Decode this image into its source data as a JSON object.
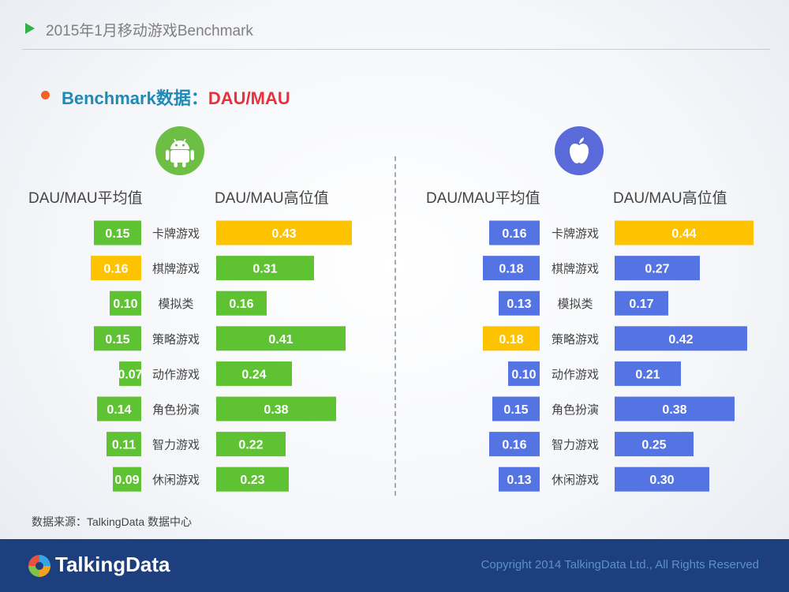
{
  "header": {
    "title": "2015年1月移动游戏Benchmark"
  },
  "section": {
    "title_a": "Benchmark数据：",
    "title_b": "DAU/MAU"
  },
  "android": {
    "logo": "android-icon",
    "avg_label": "DAU/MAU平均值",
    "high_label": "DAU/MAU高位值"
  },
  "ios": {
    "logo": "apple-icon",
    "avg_label": "DAU/MAU平均值",
    "high_label": "DAU/MAU高位值"
  },
  "source": "数据来源：TalkingData 数据中心",
  "footer": {
    "brand": "TalkingData",
    "copyright": "Copyright 2014 TalkingData Ltd., All Rights Reserved"
  },
  "colors": {
    "green": "#5ec232",
    "blue": "#5574e3",
    "highlight": "#fdc301"
  },
  "chart_data": [
    {
      "type": "bar",
      "platform": "android",
      "categories": [
        "卡牌游戏",
        "棋牌游戏",
        "模拟类",
        "策略游戏",
        "动作游戏",
        "角色扮演",
        "智力游戏",
        "休闲游戏"
      ],
      "series": [
        {
          "name": "DAU/MAU平均值",
          "values": [
            0.15,
            0.16,
            0.1,
            0.15,
            0.07,
            0.14,
            0.11,
            0.09
          ],
          "labels": [
            "0.15",
            "0.16",
            "0.10",
            "0.15",
            "0.07",
            "0.14",
            "0.11",
            "0.09"
          ],
          "highlight_index": 1
        },
        {
          "name": "DAU/MAU高位值",
          "values": [
            0.43,
            0.31,
            0.16,
            0.41,
            0.24,
            0.38,
            0.22,
            0.23
          ],
          "labels": [
            "0.43",
            "0.31",
            "0.16",
            "0.41",
            "0.24",
            "0.38",
            "0.22",
            "0.23"
          ],
          "highlight_index": 0
        }
      ]
    },
    {
      "type": "bar",
      "platform": "ios",
      "categories": [
        "卡牌游戏",
        "棋牌游戏",
        "模拟类",
        "策略游戏",
        "动作游戏",
        "角色扮演",
        "智力游戏",
        "休闲游戏"
      ],
      "series": [
        {
          "name": "DAU/MAU平均值",
          "values": [
            0.16,
            0.18,
            0.13,
            0.18,
            0.1,
            0.15,
            0.16,
            0.13
          ],
          "labels": [
            "0.16",
            "0.18",
            "0.13",
            "0.18",
            "0.10",
            "0.15",
            "0.16",
            "0.13"
          ],
          "highlight_index": 3
        },
        {
          "name": "DAU/MAU高位值",
          "values": [
            0.44,
            0.27,
            0.17,
            0.42,
            0.21,
            0.38,
            0.25,
            0.3
          ],
          "labels": [
            "0.44",
            "0.27",
            "0.17",
            "0.42",
            "0.21",
            "0.38",
            "0.25",
            "0.30"
          ],
          "highlight_index": 0
        }
      ]
    }
  ]
}
